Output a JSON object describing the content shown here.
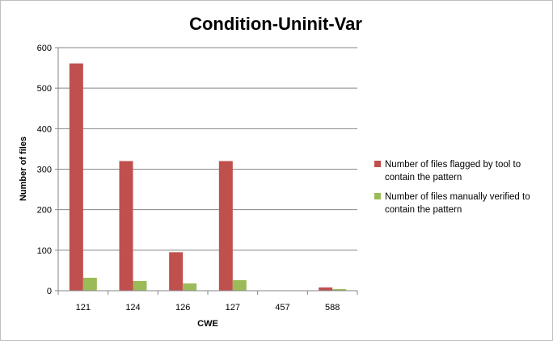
{
  "chart_data": {
    "type": "bar",
    "title": "Condition-Uninit-Var",
    "xlabel": "CWE",
    "ylabel": "Number of files",
    "categories": [
      "121",
      "124",
      "126",
      "127",
      "457",
      "588"
    ],
    "ylim": [
      0,
      600
    ],
    "yticks": [
      0,
      100,
      200,
      300,
      400,
      500,
      600
    ],
    "grid": true,
    "legend_position": "right",
    "series": [
      {
        "name": "Number of files flagged by tool to contain the pattern",
        "name_lines": [
          "Number of files flagged by tool to",
          "contain the pattern"
        ],
        "color": "#c0504d",
        "values": [
          561,
          320,
          95,
          320,
          0,
          8
        ]
      },
      {
        "name": "Number of files manually verified to contain the pattern",
        "name_lines": [
          "Number of files manually verified to",
          "contain the pattern"
        ],
        "color": "#9bbb59",
        "values": [
          32,
          24,
          18,
          26,
          0,
          4
        ]
      }
    ]
  }
}
